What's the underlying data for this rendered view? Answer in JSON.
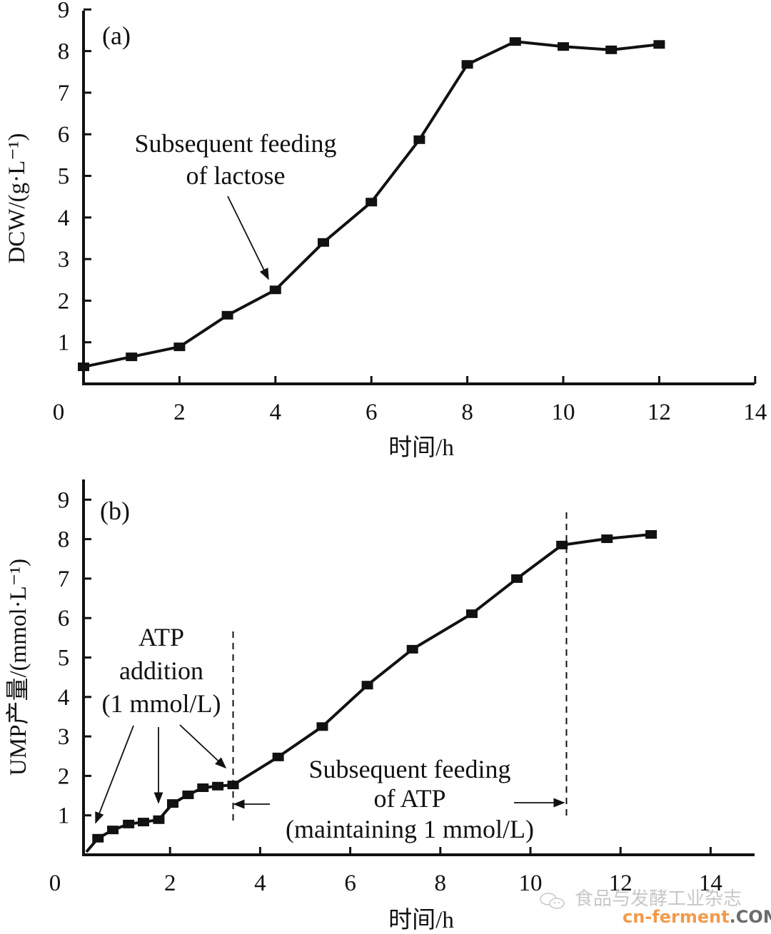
{
  "chart_data": [
    {
      "type": "line",
      "panel_label": "(a)",
      "title": "",
      "xlabel": "时间/h",
      "ylabel": "DCW/(g·L⁻¹)",
      "xlim": [
        0,
        14
      ],
      "ylim": [
        0,
        9
      ],
      "xticks": [
        "0",
        "2",
        "4",
        "6",
        "8",
        "10",
        "12",
        "14"
      ],
      "yticks": [
        "1",
        "2",
        "3",
        "4",
        "5",
        "6",
        "7",
        "8",
        "9"
      ],
      "grid": false,
      "marker": "square",
      "series": [
        {
          "name": "DCW",
          "x": [
            0,
            1,
            2,
            3,
            4,
            5,
            6,
            7,
            8,
            9,
            10,
            11,
            12
          ],
          "y": [
            0.41,
            0.65,
            0.89,
            1.65,
            2.26,
            3.4,
            4.37,
            5.87,
            7.68,
            8.23,
            8.11,
            8.03,
            8.16
          ]
        }
      ],
      "annotations": [
        {
          "text_lines": [
            "Subsequent feeding",
            "of lactose"
          ],
          "arrow_to": {
            "x": 3.9,
            "y": 2.5
          }
        }
      ]
    },
    {
      "type": "line",
      "panel_label": "(b)",
      "title": "",
      "xlabel": "时间/h",
      "ylabel": "UMP产量/(mmol·L⁻¹)",
      "xlim": [
        0,
        15
      ],
      "ylim": [
        0,
        9.5
      ],
      "xticks": [
        "0",
        "2",
        "4",
        "6",
        "8",
        "10",
        "12",
        "14"
      ],
      "yticks": [
        "1",
        "2",
        "3",
        "4",
        "5",
        "6",
        "7",
        "8",
        "9"
      ],
      "grid": false,
      "marker": "square",
      "series": [
        {
          "name": "UMP",
          "x": [
            0.4,
            0.73,
            1.08,
            1.41,
            1.75,
            2.06,
            2.4,
            2.73,
            3.06,
            3.4,
            4.4,
            5.38,
            6.38,
            7.38,
            8.7,
            9.7,
            10.7,
            11.7,
            12.68
          ],
          "y": [
            0.42,
            0.63,
            0.78,
            0.83,
            0.89,
            1.3,
            1.52,
            1.7,
            1.74,
            1.77,
            2.48,
            3.25,
            4.3,
            5.21,
            6.11,
            7.0,
            7.85,
            8.01,
            8.12
          ]
        }
      ],
      "vlines": [
        3.4,
        10.8
      ],
      "annotations": [
        {
          "text_lines": [
            "ATP",
            "addition",
            "(1 mmol/L)"
          ],
          "arrows_to": [
            {
              "x": 0.4,
              "y": 1.0
            },
            {
              "x": 1.7,
              "y": 1.3
            },
            {
              "x": 3.3,
              "y": 2.2
            }
          ]
        },
        {
          "text_lines": [
            "Subsequent feeding",
            "of ATP",
            "(maintaining 1 mmol/L)"
          ],
          "span": [
            3.4,
            10.8
          ]
        }
      ]
    }
  ],
  "watermark": {
    "chinese": "食品与发酵工业杂志",
    "site_main": "cn-ferment",
    "site_suffix": ".COM",
    "colors": {
      "main": "#f39a4c",
      "suffix": "#6b6b6b"
    }
  }
}
